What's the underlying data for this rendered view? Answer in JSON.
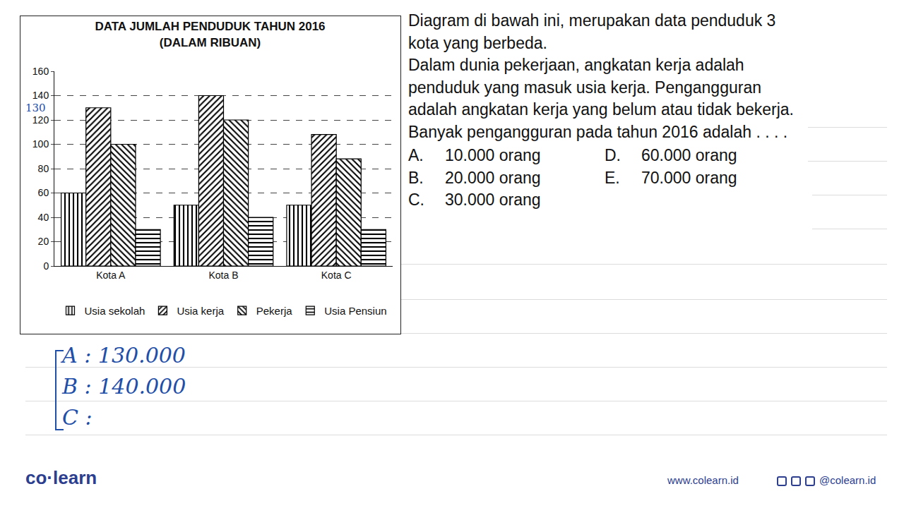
{
  "chart_data": {
    "type": "bar",
    "title": "DATA JUMLAH PENDUDUK TAHUN 2016",
    "subtitle": "(DALAM RIBUAN)",
    "categories": [
      "Kota A",
      "Kota B",
      "Kota C"
    ],
    "series": [
      {
        "name": "Usia sekolah",
        "color": "#000000",
        "marker": "vertical",
        "values": [
          60,
          50,
          50
        ]
      },
      {
        "name": "Usia kerja",
        "color": "#000000",
        "marker": "diagonal",
        "values": [
          130,
          140,
          108
        ]
      },
      {
        "name": "Pekerja",
        "color": "#000000",
        "marker": "backdiagonal",
        "values": [
          100,
          120,
          88
        ]
      },
      {
        "name": "Usia Pensiun",
        "color": "#000000",
        "marker": "horizontal",
        "values": [
          30,
          40,
          30
        ]
      }
    ],
    "ylim": [
      0,
      160
    ],
    "yticks": [
      0,
      20,
      40,
      60,
      80,
      100,
      120,
      140,
      160
    ],
    "grid": true,
    "legend": "bottom",
    "annotations": [
      {
        "text": "130",
        "y": 130
      }
    ]
  },
  "question": {
    "intro": "Diagram di bawah ini, merupakan data penduduk 3 kota yang berbeda.",
    "body": "Dalam dunia pekerjaan, angkatan kerja adalah penduduk yang masuk usia kerja. Pengangguran adalah angkatan kerja yang belum atau tidak bekerja. Banyak pengangguran pada tahun 2016 adalah . . . .",
    "options": [
      {
        "label": "A.",
        "text": "10.000 orang"
      },
      {
        "label": "D.",
        "text": "60.000 orang"
      },
      {
        "label": "B.",
        "text": "20.000 orang"
      },
      {
        "label": "E.",
        "text": "70.000 orang"
      },
      {
        "label": "C.",
        "text": "30.000 orang"
      }
    ]
  },
  "notes": [
    "A : 130.000",
    "B : 140.000",
    "C :"
  ],
  "footer": {
    "brand": "co·learn",
    "website": "www.colearn.id",
    "social": "@colearn.id"
  }
}
